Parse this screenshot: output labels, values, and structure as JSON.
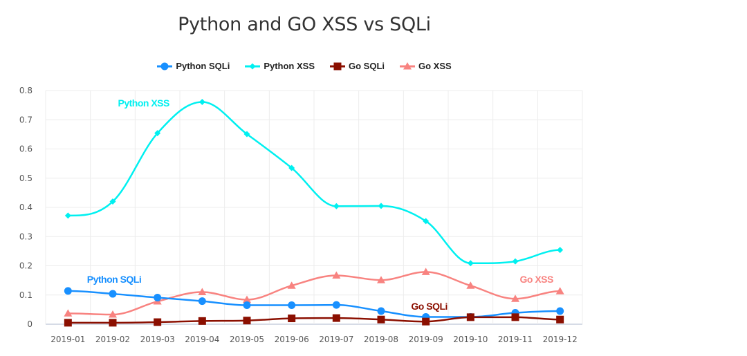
{
  "chart_data": {
    "type": "line",
    "title": "Python and GO XSS vs SQLi",
    "xlabel": "",
    "ylabel": "",
    "ylim": [
      0,
      0.8
    ],
    "yticks": [
      "0",
      "0.1",
      "0.2",
      "0.3",
      "0.4",
      "0.5",
      "0.6",
      "0.7",
      "0.8"
    ],
    "grid": true,
    "smooth": true,
    "legend_position": "top-center",
    "categories": [
      "2019-01",
      "2019-02",
      "2019-03",
      "2019-04",
      "2019-05",
      "2019-06",
      "2019-07",
      "2019-08",
      "2019-09",
      "2019-10",
      "2019-11",
      "2019-12"
    ],
    "series": [
      {
        "name": "Python SQLi",
        "color": "#1890ff",
        "marker": "circle",
        "label": "Python SQLi",
        "label_anchor_index": 1,
        "values": [
          0.114,
          0.104,
          0.091,
          0.079,
          0.065,
          0.065,
          0.066,
          0.045,
          0.025,
          0.025,
          0.039,
          0.045
        ]
      },
      {
        "name": "Python XSS",
        "color": "#00f0f0",
        "marker": "diamond",
        "label": "Python XSS",
        "label_anchor_index": 2,
        "values": [
          0.372,
          0.42,
          0.654,
          0.761,
          0.651,
          0.535,
          0.404,
          0.405,
          0.353,
          0.209,
          0.215,
          0.254
        ]
      },
      {
        "name": "Go SQLi",
        "color": "#8b0f00",
        "marker": "square",
        "label": "Go SQLi",
        "label_anchor_index": 8,
        "values": [
          0.005,
          0.005,
          0.007,
          0.011,
          0.0125,
          0.02,
          0.021,
          0.016,
          0.009,
          0.024,
          0.024,
          0.016
        ]
      },
      {
        "name": "Go XSS",
        "color": "#f88380",
        "marker": "triangle",
        "label": "Go XSS",
        "label_anchor_index": 11,
        "values": [
          0.037,
          0.033,
          0.078,
          0.11,
          0.084,
          0.132,
          0.167,
          0.151,
          0.179,
          0.132,
          0.087,
          0.113
        ]
      }
    ]
  }
}
